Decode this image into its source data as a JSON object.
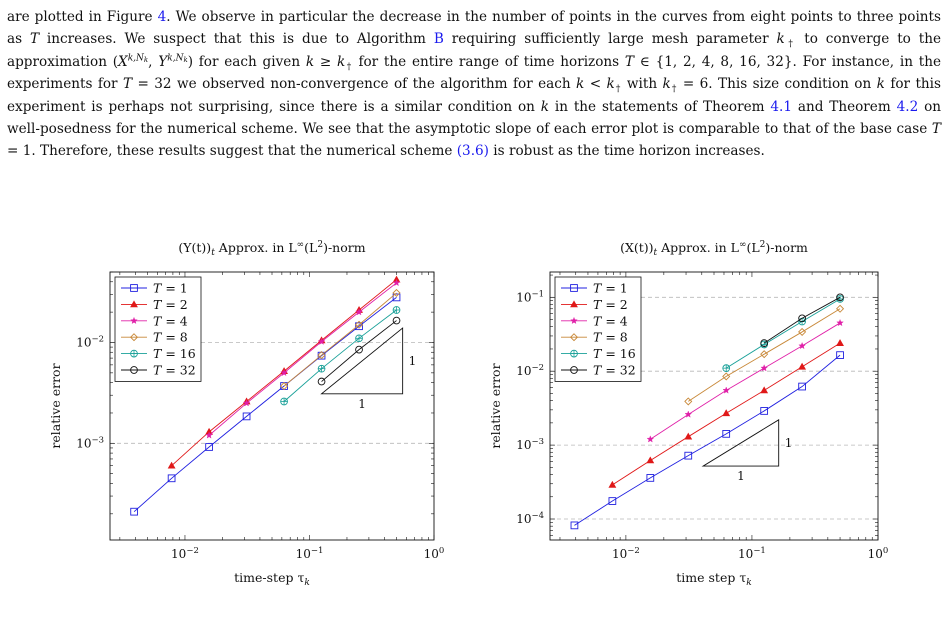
{
  "paragraph": [
    {
      "t": "are plotted in Figure "
    },
    {
      "t": "4",
      "ref": true
    },
    {
      "t": ". We observe in particular the decrease in the number of points in the curves from eight points to three points as "
    },
    {
      "t": "T",
      "em": true
    },
    {
      "t": " increases. We suspect that this is due to Algorithm "
    },
    {
      "t": "B",
      "ref": true
    },
    {
      "t": " requiring sufficiently large mesh parameter "
    },
    {
      "t": "k",
      "em": true
    },
    {
      "t": "†",
      "sub": true
    },
    {
      "t": " to converge to the approximation ("
    },
    {
      "t": "X",
      "em": true
    },
    {
      "t": "k,N",
      "sup": true
    },
    {
      "t": "k",
      "supsub": true
    },
    {
      "t": ", "
    },
    {
      "t": "Y",
      "em": true
    },
    {
      "t": "k,N",
      "sup": true
    },
    {
      "t": "k",
      "supsub": true
    },
    {
      "t": ") for each given "
    },
    {
      "t": "k",
      "em": true
    },
    {
      "t": " ≥ "
    },
    {
      "t": "k",
      "em": true
    },
    {
      "t": "†",
      "sub": true
    },
    {
      "t": " for the entire range of time horizons "
    },
    {
      "t": "T",
      "em": true
    },
    {
      "t": " ∈ {1, 2, 4, 8, 16, 32}. For instance, in the experiments for "
    },
    {
      "t": "T",
      "em": true
    },
    {
      "t": " = 32 we observed non-convergence of the algorithm for each "
    },
    {
      "t": "k",
      "em": true
    },
    {
      "t": " < "
    },
    {
      "t": "k",
      "em": true
    },
    {
      "t": "†",
      "sub": true
    },
    {
      "t": " with "
    },
    {
      "t": "k",
      "em": true
    },
    {
      "t": "†",
      "sub": true
    },
    {
      "t": " = 6. This size condition on "
    },
    {
      "t": "k",
      "em": true
    },
    {
      "t": " for this experiment is perhaps not surprising, since there is a similar condition on "
    },
    {
      "t": "k",
      "em": true
    },
    {
      "t": " in the statements of Theorem "
    },
    {
      "t": "4.1",
      "ref": true
    },
    {
      "t": " and Theorem "
    },
    {
      "t": "4.2",
      "ref": true
    },
    {
      "t": " on well-posedness for the numerical scheme. We see that the asymptotic slope of each error plot is comparable to that of the base case "
    },
    {
      "t": "T",
      "em": true
    },
    {
      "t": " = 1. Therefore, these results suggest that the numerical scheme "
    },
    {
      "t": "(3.6)",
      "ref": true
    },
    {
      "t": " is robust as the time horizon increases."
    }
  ],
  "colors": {
    "T1": "#2020e0",
    "T2": "#e01818",
    "T4": "#e020a8",
    "T8": "#c88838",
    "T16": "#18a098",
    "T32": "#111111",
    "ref": "#1a1aee"
  },
  "chart_data": [
    {
      "type": "line",
      "title": "(Y(t))_t Approx. in L^∞(L²)-norm",
      "title_parts": {
        "pre": "(Y(t))",
        "sub": "t",
        "mid": " Approx. in L",
        "sup1": "∞",
        "mid2": "(L",
        "sup2": "2",
        "post": ")-norm"
      },
      "xlabel": "time-step τ_k",
      "xlabel_parts": {
        "pre": "time-step τ",
        "sub": "k"
      },
      "ylabel": "relative error",
      "x_scale": "log",
      "y_scale": "log",
      "xlim": [
        0.0025,
        1.0
      ],
      "ylim": [
        0.00011,
        0.05
      ],
      "x_ticks": [
        {
          "v": 0.01,
          "base": "10",
          "exp": "−2"
        },
        {
          "v": 0.1,
          "base": "10",
          "exp": "−1"
        },
        {
          "v": 1,
          "base": "10",
          "exp": "0"
        }
      ],
      "y_ticks": [
        {
          "v": 0.001,
          "base": "10",
          "exp": "−3"
        },
        {
          "v": 0.01,
          "base": "10",
          "exp": "−2"
        }
      ],
      "grid": "horizontal dashed at major y ticks",
      "legend_position": "top-left",
      "series": [
        {
          "name": "T = 1",
          "label": "1",
          "marker": "square",
          "color_key": "T1",
          "x": [
            0.00390625,
            0.0078125,
            0.015625,
            0.03125,
            0.0625,
            0.125,
            0.25,
            0.5
          ],
          "y": [
            0.00021,
            0.00045,
            0.00092,
            0.00185,
            0.0037,
            0.0074,
            0.0145,
            0.028
          ]
        },
        {
          "name": "T = 2",
          "label": "2",
          "marker": "triangle",
          "color_key": "T2",
          "x": [
            0.0078125,
            0.015625,
            0.03125,
            0.0625,
            0.125,
            0.25,
            0.5
          ],
          "y": [
            0.0006,
            0.0013,
            0.0026,
            0.0052,
            0.0105,
            0.021,
            0.042
          ]
        },
        {
          "name": "T = 4",
          "label": "4",
          "marker": "star",
          "color_key": "T4",
          "x": [
            0.015625,
            0.03125,
            0.0625,
            0.125,
            0.25,
            0.5
          ],
          "y": [
            0.0012,
            0.0025,
            0.005,
            0.0102,
            0.02,
            0.039
          ]
        },
        {
          "name": "T = 8",
          "label": "8",
          "marker": "diamond",
          "color_key": "T8",
          "x": [
            0.0625,
            0.125,
            0.25,
            0.5
          ],
          "y": [
            0.0037,
            0.0075,
            0.015,
            0.031
          ]
        },
        {
          "name": "T = 16",
          "label": "16",
          "marker": "oplus",
          "color_key": "T16",
          "x": [
            0.0625,
            0.125,
            0.25,
            0.5
          ],
          "y": [
            0.0026,
            0.0055,
            0.011,
            0.021
          ]
        },
        {
          "name": "T = 32",
          "label": "32",
          "marker": "circle",
          "color_key": "T32",
          "x": [
            0.125,
            0.25,
            0.5
          ],
          "y": [
            0.0041,
            0.0085,
            0.0165
          ]
        }
      ],
      "slope_triangle": {
        "corner": [
          0.125,
          0.0031
        ],
        "x2": 0.56,
        "y2": 0.0139,
        "run_label": "1",
        "rise_label": "1"
      }
    },
    {
      "type": "line",
      "title": "(X(t))_t Approx. in L^∞(L²)-norm",
      "title_parts": {
        "pre": "(X(t))",
        "sub": "t",
        "mid": " Approx. in L",
        "sup1": "∞",
        "mid2": "(L",
        "sup2": "2",
        "post": ")-norm"
      },
      "xlabel": "time step τ_k",
      "xlabel_parts": {
        "pre": "time step τ",
        "sub": "k"
      },
      "ylabel": "relative error",
      "x_scale": "log",
      "y_scale": "log",
      "xlim": [
        0.0025,
        1.0
      ],
      "ylim": [
        5.2e-05,
        0.22
      ],
      "x_ticks": [
        {
          "v": 0.01,
          "base": "10",
          "exp": "−2"
        },
        {
          "v": 0.1,
          "base": "10",
          "exp": "−1"
        },
        {
          "v": 1,
          "base": "10",
          "exp": "0"
        }
      ],
      "y_ticks": [
        {
          "v": 0.0001,
          "base": "10",
          "exp": "−4"
        },
        {
          "v": 0.001,
          "base": "10",
          "exp": "−3"
        },
        {
          "v": 0.01,
          "base": "10",
          "exp": "−2"
        },
        {
          "v": 0.1,
          "base": "10",
          "exp": "−1"
        }
      ],
      "grid": "horizontal dashed at major y ticks",
      "legend_position": "top-left",
      "series": [
        {
          "name": "T = 1",
          "label": "1",
          "marker": "square",
          "color_key": "T1",
          "x": [
            0.00390625,
            0.0078125,
            0.015625,
            0.03125,
            0.0625,
            0.125,
            0.25,
            0.5
          ],
          "y": [
            8.2e-05,
            0.000175,
            0.00036,
            0.00072,
            0.00142,
            0.0029,
            0.0062,
            0.0165
          ]
        },
        {
          "name": "T = 2",
          "label": "2",
          "marker": "triangle",
          "color_key": "T2",
          "x": [
            0.0078125,
            0.015625,
            0.03125,
            0.0625,
            0.125,
            0.25,
            0.5
          ],
          "y": [
            0.00029,
            0.00062,
            0.0013,
            0.0027,
            0.0055,
            0.0115,
            0.024
          ]
        },
        {
          "name": "T = 4",
          "label": "4",
          "marker": "star",
          "color_key": "T4",
          "x": [
            0.015625,
            0.03125,
            0.0625,
            0.125,
            0.25,
            0.5
          ],
          "y": [
            0.0012,
            0.0026,
            0.0055,
            0.011,
            0.022,
            0.045
          ]
        },
        {
          "name": "T = 8",
          "label": "8",
          "marker": "diamond",
          "color_key": "T8",
          "x": [
            0.03125,
            0.0625,
            0.125,
            0.25,
            0.5
          ],
          "y": [
            0.0039,
            0.0085,
            0.017,
            0.034,
            0.07
          ]
        },
        {
          "name": "T = 16",
          "label": "16",
          "marker": "oplus",
          "color_key": "T16",
          "x": [
            0.0625,
            0.125,
            0.25,
            0.5
          ],
          "y": [
            0.011,
            0.023,
            0.047,
            0.095
          ]
        },
        {
          "name": "T = 32",
          "label": "32",
          "marker": "circle",
          "color_key": "T32",
          "x": [
            0.125,
            0.25,
            0.5
          ],
          "y": [
            0.024,
            0.052,
            0.1
          ]
        }
      ],
      "slope_triangle": {
        "corner": [
          0.041,
          0.00052
        ],
        "x2": 0.163,
        "y2": 0.0022,
        "run_label": "1",
        "rise_label": "1"
      }
    }
  ]
}
